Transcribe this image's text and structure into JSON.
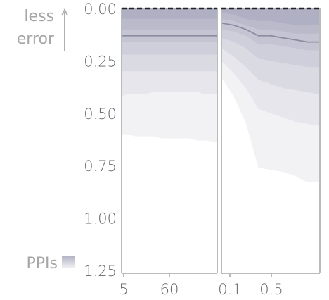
{
  "chart_data": {
    "type": "area",
    "y_axis": {
      "ticks": [
        "0.00",
        "0.25",
        "0.50",
        "0.75",
        "1.00",
        "1.25"
      ],
      "range": [
        0,
        1.25
      ],
      "inverted": true,
      "annotation": [
        "less",
        "error"
      ]
    },
    "legend": {
      "label": "PPIs"
    },
    "panels": [
      {
        "x_ticks": [
          "5",
          "60"
        ],
        "x": [
          5,
          10,
          20,
          30,
          40,
          50,
          60,
          70,
          80,
          90,
          100,
          112
        ],
        "median": [
          0.13,
          0.13,
          0.13,
          0.13,
          0.13,
          0.13,
          0.13,
          0.13,
          0.13,
          0.13,
          0.13,
          0.13
        ],
        "interval_upper_bounds": [
          [
            0.05,
            0.05,
            0.05,
            0.05,
            0.05,
            0.05,
            0.05,
            0.05,
            0.05,
            0.05,
            0.05,
            0.05
          ],
          [
            0.1,
            0.1,
            0.1,
            0.1,
            0.1,
            0.1,
            0.1,
            0.1,
            0.1,
            0.1,
            0.1,
            0.1
          ],
          [
            0.16,
            0.16,
            0.16,
            0.16,
            0.16,
            0.16,
            0.16,
            0.16,
            0.16,
            0.16,
            0.16,
            0.16
          ],
          [
            0.22,
            0.22,
            0.22,
            0.22,
            0.22,
            0.22,
            0.22,
            0.22,
            0.22,
            0.22,
            0.22,
            0.22
          ],
          [
            0.3,
            0.3,
            0.3,
            0.3,
            0.3,
            0.3,
            0.3,
            0.3,
            0.3,
            0.3,
            0.3,
            0.3
          ],
          [
            0.42,
            0.41,
            0.41,
            0.41,
            0.4,
            0.4,
            0.4,
            0.4,
            0.4,
            0.4,
            0.41,
            0.41
          ],
          [
            0.6,
            0.6,
            0.61,
            0.61,
            0.61,
            0.62,
            0.62,
            0.62,
            0.62,
            0.63,
            0.63,
            0.64
          ]
        ]
      },
      {
        "x_ticks": [
          "0.1",
          "0.5"
        ],
        "x": [
          0.1,
          0.2,
          0.3,
          0.4,
          0.5,
          0.6,
          0.7,
          0.8,
          0.9
        ],
        "median": [
          0.07,
          0.08,
          0.1,
          0.13,
          0.13,
          0.14,
          0.15,
          0.16,
          0.16
        ],
        "interval_upper_bounds": [
          [
            0.02,
            0.03,
            0.05,
            0.06,
            0.06,
            0.07,
            0.08,
            0.08,
            0.08
          ],
          [
            0.05,
            0.06,
            0.08,
            0.1,
            0.1,
            0.11,
            0.12,
            0.12,
            0.12
          ],
          [
            0.1,
            0.11,
            0.13,
            0.17,
            0.17,
            0.18,
            0.19,
            0.2,
            0.2
          ],
          [
            0.14,
            0.16,
            0.19,
            0.24,
            0.25,
            0.26,
            0.27,
            0.28,
            0.28
          ],
          [
            0.19,
            0.23,
            0.28,
            0.34,
            0.36,
            0.38,
            0.39,
            0.4,
            0.41
          ],
          [
            0.25,
            0.31,
            0.38,
            0.48,
            0.5,
            0.52,
            0.54,
            0.55,
            0.56
          ],
          [
            0.33,
            0.42,
            0.55,
            0.76,
            0.77,
            0.78,
            0.8,
            0.83,
            0.83
          ]
        ]
      }
    ],
    "colors": {
      "bands": [
        "#f2f2f5",
        "#e6e6ec",
        "#dadae3",
        "#cfcfdb",
        "#c4c4d3",
        "#babacb",
        "#b0b0c4"
      ],
      "median": "#8c8ca0",
      "baseline": "#222222",
      "axis": "#bbbbbb"
    }
  }
}
